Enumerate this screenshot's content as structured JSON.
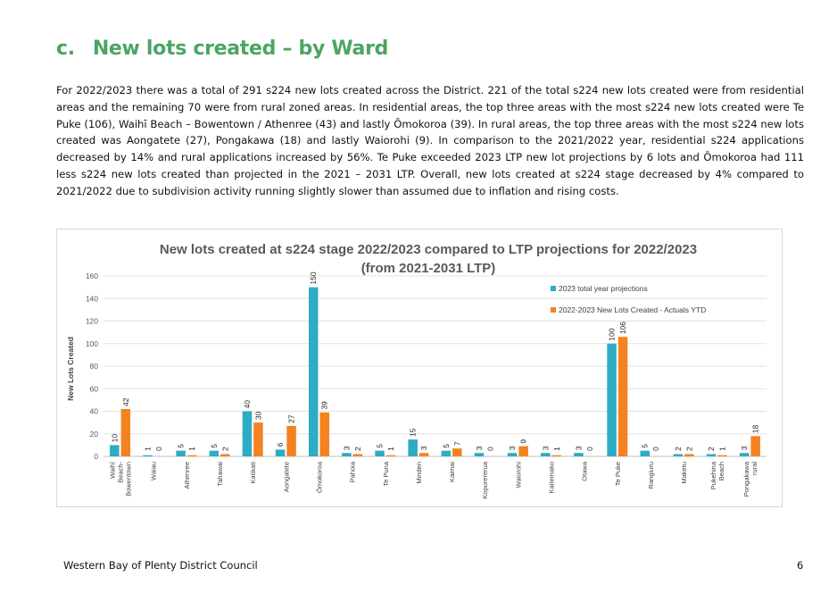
{
  "heading": {
    "number": "c.",
    "title": "New lots created – by Ward"
  },
  "intro_text": "For 2022/2023 there was a total of 291 s224 new lots created across the District. 221 of the total s224 new lots created were from residential areas and the remaining 70 were from rural zoned areas. In residential areas, the top three areas with the most s224 new lots created were Te Puke (106), Waihī Beach – Bowentown / Athenree (43) and lastly Ōmokoroa (39). In rural areas, the top three areas with the most s224 new lots created was Aongatete (27), Pongakawa (18) and lastly Waiorohi (9). In comparison to the 2021/2022 year, residential s224 applications decreased by 14% and rural applications increased by 56%. Te Puke exceeded 2023 LTP new lot projections by 6 lots and Ōmokoroa had 111 less s224 new lots created than projected in the 2021 – 2031 LTP. Overall, new lots created at s224 stage decreased by 4% compared to 2021/2022 due to subdivision activity running slightly slower than assumed due to inflation and rising costs.",
  "chart_data": {
    "type": "bar",
    "title_line1": "New lots created at s224 stage 2022/2023 compared to LTP projections for 2022/2023",
    "title_line2": "(from 2021-2031 LTP)",
    "ylabel": "New Lots Created",
    "xlabel": "",
    "ylim": [
      0,
      160
    ],
    "yticks": [
      0,
      20,
      40,
      60,
      80,
      100,
      120,
      140,
      160
    ],
    "grid": true,
    "legend_position": "top-right",
    "categories": [
      [
        "Waihī",
        "Beach-",
        "Bowentown"
      ],
      [
        "Waiau"
      ],
      [
        "Athenree"
      ],
      [
        "Tahawai"
      ],
      [
        "Katikati"
      ],
      [
        "Aongatete"
      ],
      [
        "Ōmokoroa"
      ],
      [
        "Pahoia"
      ],
      [
        "Te Puna"
      ],
      [
        "Minden"
      ],
      [
        "Kaimai"
      ],
      [
        "Kopurererua"
      ],
      [
        "Waiorohi"
      ],
      [
        "Kaitemako"
      ],
      [
        "Otawa"
      ],
      [
        "Te Puke"
      ],
      [
        "Rangiuru"
      ],
      [
        "Maketu"
      ],
      [
        "Pukehina",
        "Beach"
      ],
      [
        "Pongakawa",
        "rural"
      ]
    ],
    "series": [
      {
        "name": "2023 total year projections",
        "color": "#2eabc5",
        "values": [
          10,
          1,
          5,
          5,
          40,
          6,
          150,
          3,
          5,
          15,
          5,
          3,
          3,
          3,
          3,
          100,
          5,
          2,
          2,
          3
        ]
      },
      {
        "name": "2022-2023 New Lots Created - Actuals YTD",
        "color": "#f58220",
        "values": [
          42,
          0,
          1,
          2,
          30,
          27,
          39,
          2,
          1,
          3,
          7,
          0,
          9,
          1,
          0,
          106,
          0,
          2,
          1,
          18
        ]
      }
    ]
  },
  "footer": {
    "org": "Western Bay of Plenty District Council",
    "page": "6"
  }
}
